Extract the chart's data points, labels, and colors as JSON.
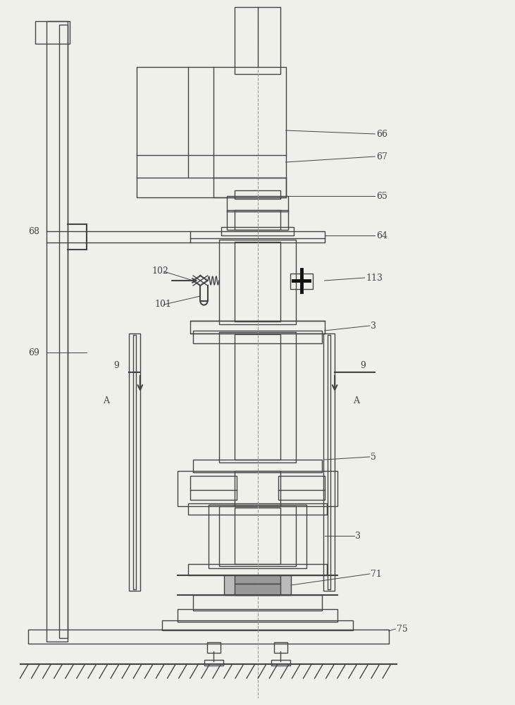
{
  "bg_color": "#f0f0eb",
  "line_color": "#444444",
  "lw": 1.0,
  "lw_thick": 1.5
}
